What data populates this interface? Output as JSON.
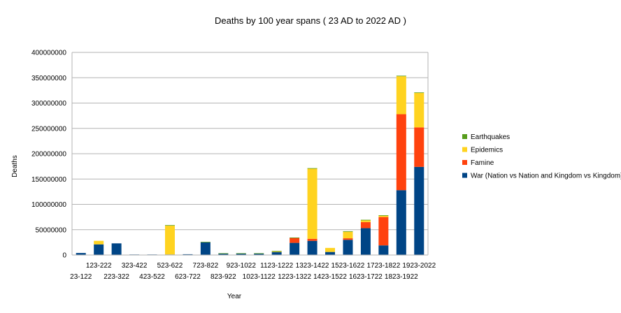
{
  "chart_data": {
    "type": "bar",
    "stacked": true,
    "title": "Deaths by 100 year spans ( 23 AD to 2022 AD )",
    "xlabel": "Year",
    "ylabel": "Deaths",
    "ylim": [
      0,
      400000000
    ],
    "yticks": [
      "0",
      "50000000",
      "100000000",
      "150000000",
      "200000000",
      "250000000",
      "300000000",
      "350000000",
      "400000000"
    ],
    "grid": true,
    "legend_position": "right",
    "categories": [
      "23-122",
      "123-222",
      "223-322",
      "323-422",
      "423-522",
      "523-622",
      "623-722",
      "723-822",
      "823-922",
      "923-1022",
      "1023-1122",
      "1123-1222",
      "1223-1322",
      "1323-1422",
      "1423-1522",
      "1523-1622",
      "1623-1722",
      "1723-1822",
      "1823-1922",
      "1923-2022"
    ],
    "series": [
      {
        "name": "War (Nation vs Nation and Kingdom vs Kingdom)",
        "color": "#004586",
        "values": [
          4000000,
          21000000,
          23000000,
          1000000,
          1000000,
          1000000,
          1500000,
          25000000,
          3000000,
          3000000,
          3000000,
          6000000,
          24000000,
          28000000,
          6000000,
          30000000,
          53000000,
          19000000,
          128000000,
          174000000
        ]
      },
      {
        "name": "Famine",
        "color": "#ff420e",
        "values": [
          0,
          0,
          0,
          0,
          0,
          0,
          0,
          0,
          0,
          0,
          0,
          0,
          10000000,
          4000000,
          0,
          3000000,
          12000000,
          56000000,
          150000000,
          78000000
        ]
      },
      {
        "name": "Epidemics",
        "color": "#ffd320",
        "values": [
          0,
          7000000,
          0,
          0,
          0,
          57000000,
          0,
          0,
          0,
          0,
          0,
          1000000,
          0,
          139000000,
          8000000,
          13000000,
          4000000,
          3000000,
          75000000,
          68000000
        ]
      },
      {
        "name": "Earthquakes",
        "color": "#579d1c",
        "values": [
          0,
          0,
          0,
          0,
          0,
          1000000,
          0,
          1000000,
          500000,
          500000,
          500000,
          1000000,
          500000,
          500000,
          0,
          1000000,
          500000,
          500000,
          1000000,
          1000000
        ]
      }
    ]
  }
}
